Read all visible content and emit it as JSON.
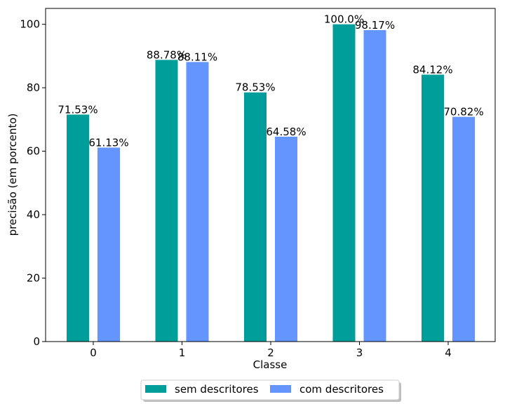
{
  "chart_data": {
    "type": "bar",
    "title": "",
    "xlabel": "Classe",
    "ylabel": "precisão (em porcento)",
    "categories": [
      "0",
      "1",
      "2",
      "3",
      "4"
    ],
    "series": [
      {
        "name": "sem descritores",
        "color": "#009e9a",
        "values": [
          71.53,
          88.78,
          78.53,
          100.0,
          84.12
        ],
        "labels": [
          "71.53%",
          "88.78%",
          "78.53%",
          "100.0%",
          "84.12%"
        ]
      },
      {
        "name": "com descritores",
        "color": "#6495ff",
        "values": [
          61.13,
          88.11,
          64.58,
          98.17,
          70.82
        ],
        "labels": [
          "61.13%",
          "88.11%",
          "64.58%",
          "98.17%",
          "70.82%"
        ]
      }
    ],
    "ylim": [
      0,
      105
    ],
    "yticks": [
      0,
      20,
      40,
      60,
      80,
      100
    ],
    "grid": false,
    "legend_position": "bottom-center"
  }
}
